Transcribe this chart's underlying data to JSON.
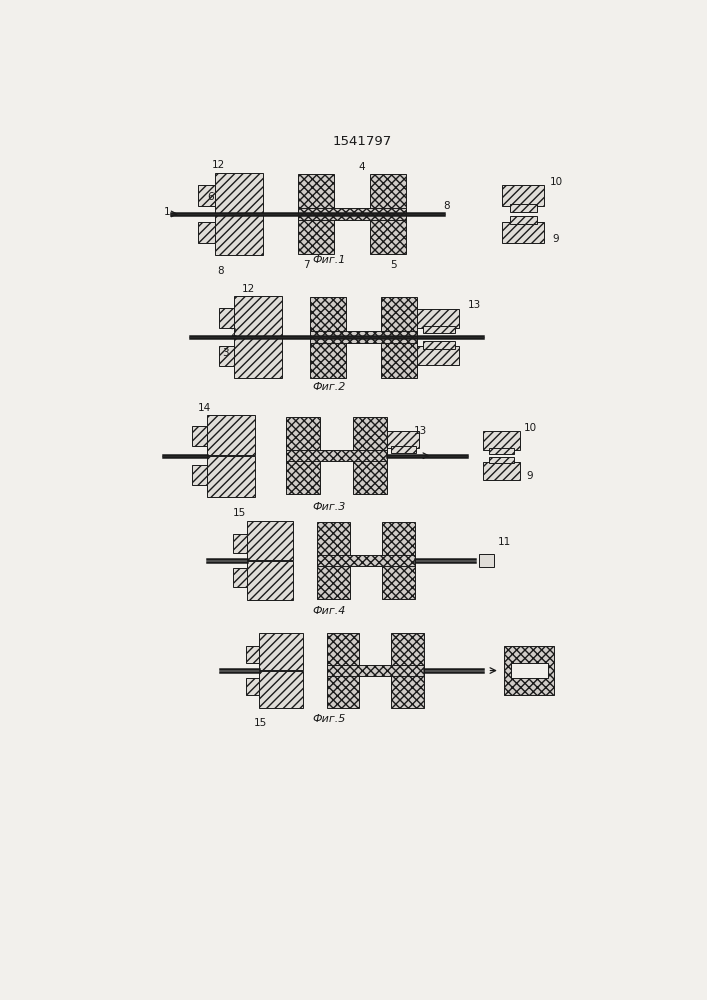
{
  "title": "1541797",
  "fig_labels": [
    "Фиг.1",
    "Фиг.2",
    "Фиг.3",
    "Фиг.4",
    "Фиг.5"
  ],
  "bg_color": "#f2f0ec",
  "lc": "#1a1a1a",
  "fc_diag": "#e0ddd8",
  "fc_cross": "#d0ccc8",
  "fc_white": "#ffffff",
  "hatch_diag": "////",
  "hatch_cross": "xxxx"
}
